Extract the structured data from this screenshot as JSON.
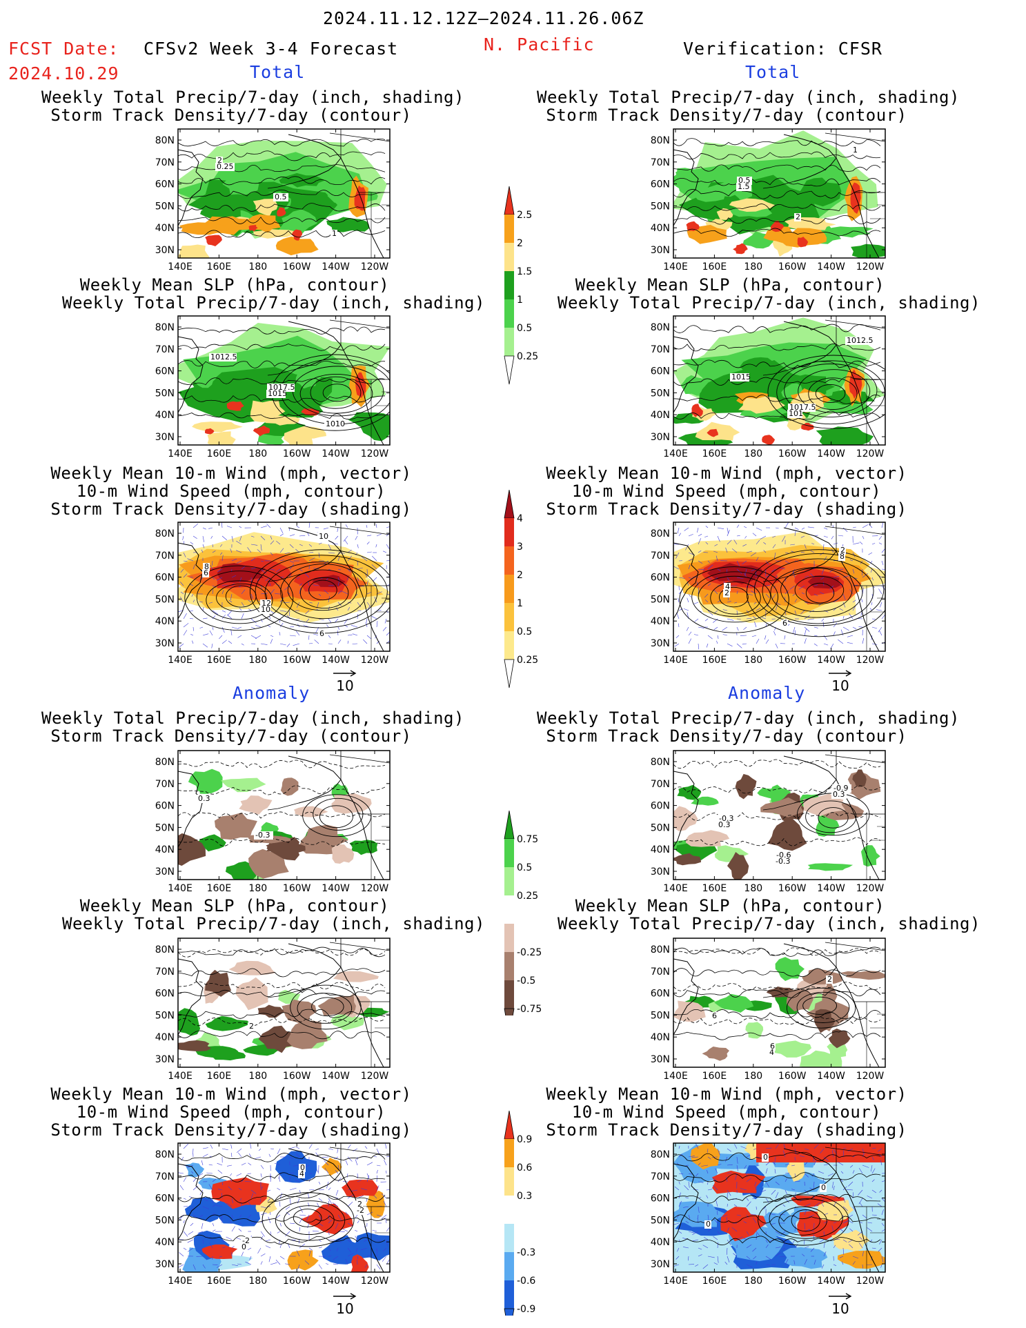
{
  "header": {
    "period": "2024.11.12.12Z–2024.11.26.06Z",
    "fcst_label": "FCST Date:",
    "fcst_date": "2024.10.29",
    "model": "CFSv2 Week 3-4 Forecast",
    "region": "N. Pacific",
    "verification": "Verification: CFSR"
  },
  "sections": {
    "total": "Total",
    "anomaly": "Anomaly"
  },
  "titles": {
    "precip_storm": [
      "Weekly Total Precip/7-day (inch, shading)",
      "Storm Track Density/7-day (contour)"
    ],
    "slp_precip": [
      "Weekly Mean SLP (hPa, contour)",
      "Weekly Total Precip/7-day (inch, shading)"
    ],
    "wind_storm": [
      "Weekly Mean 10-m Wind (mph, vector)",
      "10-m Wind Speed (mph, contour)",
      "Storm Track Density/7-day (shading)"
    ]
  },
  "axes": {
    "lat_ticks": [
      "80N",
      "70N",
      "60N",
      "50N",
      "40N",
      "30N"
    ],
    "lon_ticks": [
      "140E",
      "160E",
      "180",
      "160W",
      "140W",
      "120W"
    ]
  },
  "vector_ref": "10",
  "colorbars": {
    "precip_total": {
      "labels": [
        "2.5",
        "2",
        "1.5",
        "1",
        "0.5",
        "0.25"
      ],
      "colors": [
        "#e8331e",
        "#f7a11b",
        "#fde38a",
        "#1ea01e",
        "#4cd24c",
        "#a5f08f"
      ]
    },
    "storm_total": {
      "labels": [
        "4",
        "3",
        "2",
        "1",
        "0.5",
        "0.25"
      ],
      "colors": [
        "#a3101a",
        "#e12c1d",
        "#f4641e",
        "#f79a1c",
        "#fbc23c",
        "#fde98c"
      ]
    },
    "precip_anom": {
      "labels": [
        "0.75",
        "0.5",
        "0.25",
        "-0.25",
        "-0.5",
        "-0.75"
      ],
      "colors": [
        "#1ea01e",
        "#4cd24c",
        "#a5f08f",
        "#e3c3b4",
        "#a8806e",
        "#6e4a3c"
      ]
    },
    "storm_anom": {
      "labels": [
        "0.9",
        "0.6",
        "0.3",
        "-0.3",
        "-0.6",
        "-0.9"
      ],
      "colors": [
        "#e8331e",
        "#f7a11b",
        "#fde38a",
        "#b5e6f5",
        "#5aaaf0",
        "#1f5fd8"
      ]
    }
  },
  "map_labels": {
    "p1": [
      "2",
      "0.5",
      "1",
      "0.25"
    ],
    "p2": [
      "0.5",
      "2",
      "1",
      "1.5"
    ],
    "p3": [
      "1017.5",
      "1010",
      "1012.5",
      "1015"
    ],
    "p4": [
      "1017.5",
      "1012.5",
      "1015",
      "101"
    ],
    "p5": [
      "6",
      "8",
      "12",
      "10",
      "6",
      "10"
    ],
    "p6": [
      "2",
      "4",
      "6",
      "8",
      "2"
    ],
    "p7": [
      "0.3",
      "-0.3"
    ],
    "p8": [
      "-0.3",
      "-0.6",
      "-0.9",
      "0.3",
      "-0.3",
      "0.3"
    ],
    "p9": [
      "2"
    ],
    "p10": [
      "6",
      "2",
      "6",
      "4"
    ],
    "p11": [
      "0",
      "2",
      "-2",
      "4",
      "-2",
      "0"
    ],
    "p12": [
      "0",
      "0",
      "0"
    ]
  }
}
